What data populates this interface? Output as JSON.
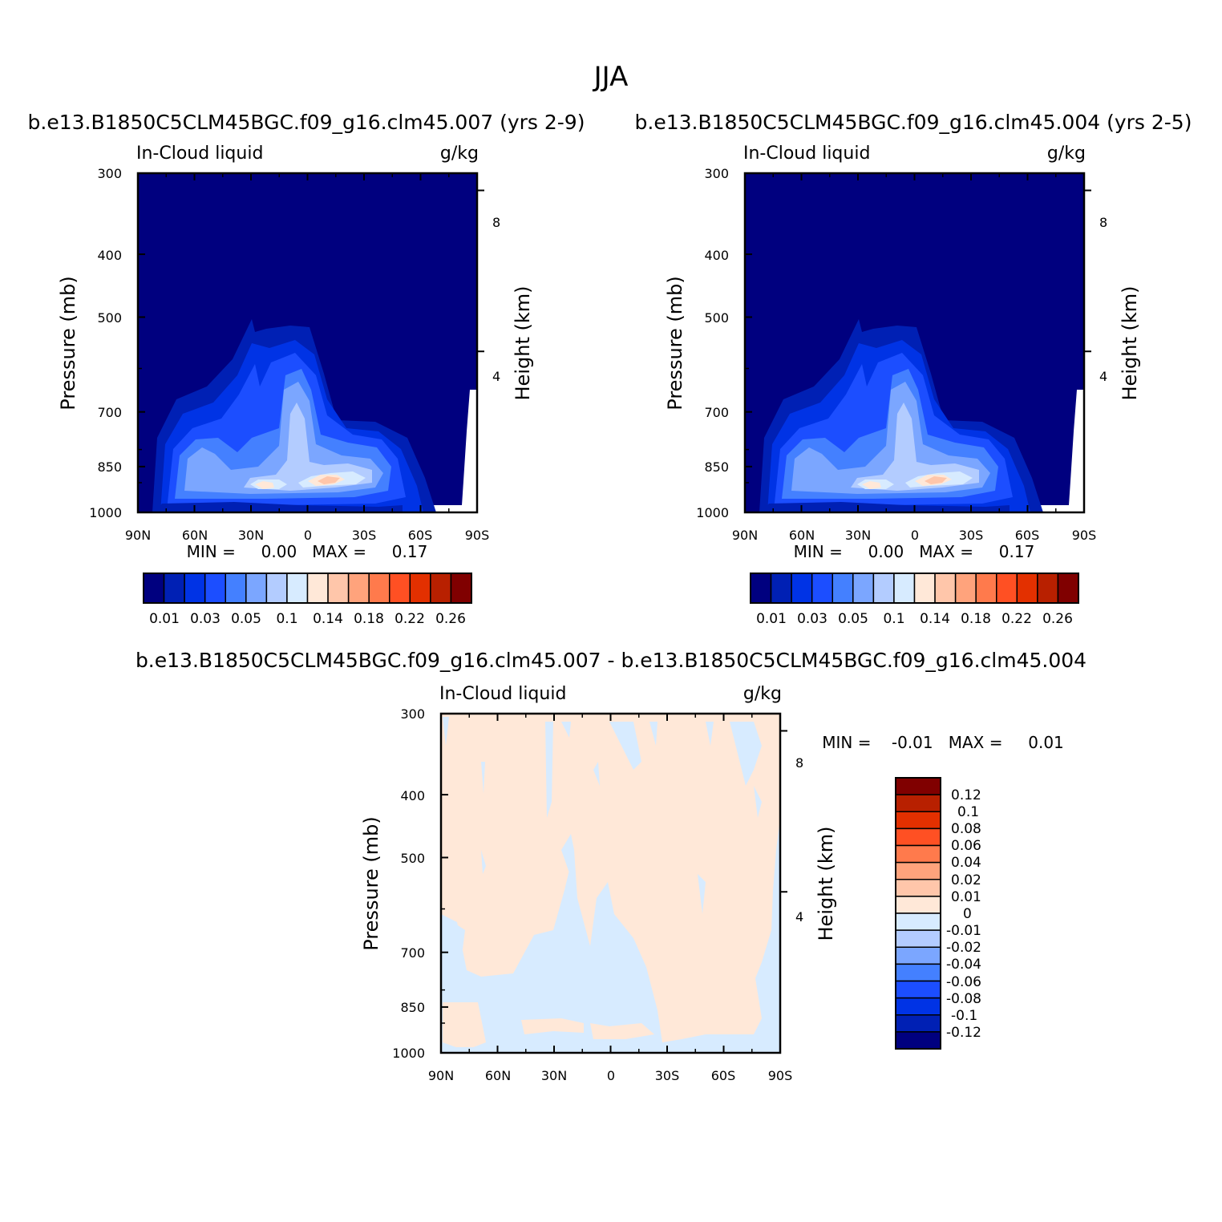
{
  "figure": {
    "main_title": "JJA"
  },
  "chart_data": [
    {
      "type": "heatmap",
      "title": "b.e13.B1850C5CLM45BGC.f09_g16.clm45.007 (yrs 2-9)",
      "left_label": "In-Cloud liquid",
      "right_label": "g/kg",
      "ylabel": "Pressure (mb)",
      "ylabel_right": "Height (km)",
      "x_ticks": [
        "90N",
        "60N",
        "30N",
        "0",
        "30S",
        "60S",
        "90S"
      ],
      "y_ticks": [
        "300",
        "400",
        "500",
        "700",
        "850",
        "1000"
      ],
      "y_right_ticks": [
        "8",
        "4"
      ],
      "ylim": [
        1000,
        300
      ],
      "stats_text": "MIN =     0.00   MAX =     0.17",
      "min": 0.0,
      "max": 0.17,
      "colorbar": {
        "orientation": "horizontal",
        "colors": [
          "#00007f",
          "#0020b4",
          "#0033e5",
          "#1c4eff",
          "#4480ff",
          "#7ba6ff",
          "#b3ccff",
          "#d7ebff",
          "#ffe8d8",
          "#ffc6aa",
          "#ffa37c",
          "#ff7a4c",
          "#ff5023",
          "#e33000",
          "#b82000",
          "#800000"
        ],
        "labels": [
          "0.01",
          "0.03",
          "0.05",
          "0.1",
          "0.14",
          "0.18",
          "0.22",
          "0.26"
        ]
      },
      "field_summary": {
        "background_value": 0.005,
        "peak_value": 0.17,
        "peak_location": "10S-15S near 870 mb",
        "secondary_peak": "20N-30N near 880 mb",
        "deep_plume": "10N-15N up to 600 mb"
      }
    },
    {
      "type": "heatmap",
      "title": "b.e13.B1850C5CLM45BGC.f09_g16.clm45.004 (yrs 2-5)",
      "left_label": "In-Cloud liquid",
      "right_label": "g/kg",
      "ylabel": "Pressure (mb)",
      "ylabel_right": "Height (km)",
      "x_ticks": [
        "90N",
        "60N",
        "30N",
        "0",
        "30S",
        "60S",
        "90S"
      ],
      "y_ticks": [
        "300",
        "400",
        "500",
        "700",
        "850",
        "1000"
      ],
      "y_right_ticks": [
        "8",
        "4"
      ],
      "ylim": [
        1000,
        300
      ],
      "stats_text": "MIN =     0.00   MAX =     0.17",
      "min": 0.0,
      "max": 0.17,
      "colorbar": {
        "orientation": "horizontal",
        "colors": [
          "#00007f",
          "#0020b4",
          "#0033e5",
          "#1c4eff",
          "#4480ff",
          "#7ba6ff",
          "#b3ccff",
          "#d7ebff",
          "#ffe8d8",
          "#ffc6aa",
          "#ffa37c",
          "#ff7a4c",
          "#ff5023",
          "#e33000",
          "#b82000",
          "#800000"
        ],
        "labels": [
          "0.01",
          "0.03",
          "0.05",
          "0.1",
          "0.14",
          "0.18",
          "0.22",
          "0.26"
        ]
      },
      "field_summary": {
        "background_value": 0.005,
        "peak_value": 0.17,
        "peak_location": "10S-15S near 870 mb",
        "secondary_peak": "20N-30N near 880 mb",
        "deep_plume": "10N-15N up to 600 mb"
      }
    },
    {
      "type": "heatmap",
      "title": "b.e13.B1850C5CLM45BGC.f09_g16.clm45.007 - b.e13.B1850C5CLM45BGC.f09_g16.clm45.004",
      "left_label": "In-Cloud liquid",
      "right_label": "g/kg",
      "ylabel": "Pressure (mb)",
      "ylabel_right": "Height (km)",
      "x_ticks": [
        "90N",
        "60N",
        "30N",
        "0",
        "30S",
        "60S",
        "90S"
      ],
      "y_ticks": [
        "300",
        "400",
        "500",
        "700",
        "850",
        "1000"
      ],
      "y_right_ticks": [
        "8",
        "4"
      ],
      "ylim": [
        1000,
        300
      ],
      "stats_text": "MIN =    -0.01   MAX =     0.01",
      "min": -0.01,
      "max": 0.01,
      "colorbar": {
        "orientation": "vertical",
        "colors": [
          "#800000",
          "#b82000",
          "#e33000",
          "#ff5023",
          "#ff7a4c",
          "#ffa37c",
          "#ffc6aa",
          "#ffe8d8",
          "#d7ebff",
          "#b3ccff",
          "#7ba6ff",
          "#4480ff",
          "#1c4eff",
          "#0033e5",
          "#0020b4",
          "#00007f"
        ],
        "labels": [
          "0.12",
          "0.1",
          "0.08",
          "0.06",
          "0.04",
          "0.02",
          "0.01",
          "0",
          "-0.01",
          "-0.02",
          "-0.04",
          "-0.06",
          "-0.08",
          "-0.1",
          "-0.12"
        ]
      },
      "field_summary": {
        "positive_fill": "0 to 0.01",
        "negative_fill": "-0.01 to 0",
        "dominant_sign": "positive"
      }
    }
  ]
}
